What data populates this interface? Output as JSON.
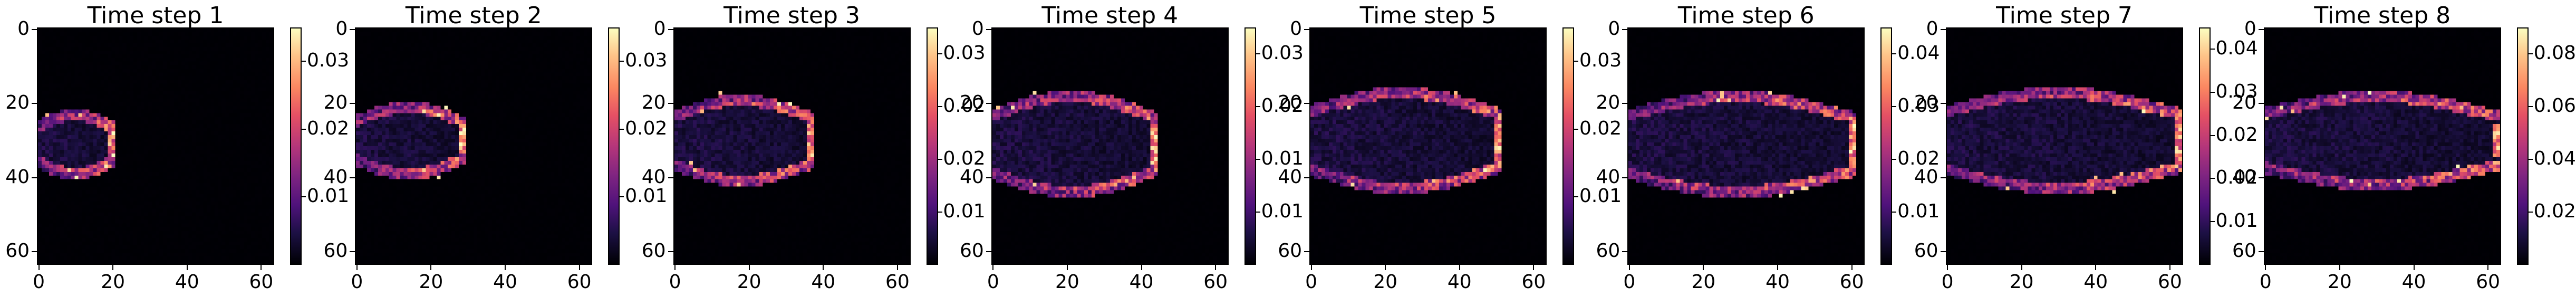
{
  "figure": {
    "background": "#ffffff"
  },
  "chart_data": [
    {
      "type": "heatmap",
      "title": "Time step 1",
      "colormap": "magma",
      "grid": false,
      "xticks": [
        0,
        20,
        40,
        60
      ],
      "yticks": [
        0,
        20,
        40,
        60
      ],
      "xlim": [
        0,
        64
      ],
      "ylim": [
        64,
        0
      ],
      "colorbar": {
        "ticks": [
          "0.01",
          "0.02",
          "0.03"
        ],
        "range": [
          0,
          0.035
        ]
      },
      "front": {
        "tip_x": 20,
        "center_y": 31,
        "half_width": 8,
        "peak": 0.035
      }
    },
    {
      "type": "heatmap",
      "title": "Time step 2",
      "colormap": "magma",
      "grid": false,
      "xticks": [
        0,
        20,
        40,
        60
      ],
      "yticks": [
        0,
        20,
        40,
        60
      ],
      "xlim": [
        0,
        64
      ],
      "ylim": [
        64,
        0
      ],
      "colorbar": {
        "ticks": [
          "0.01",
          "0.02",
          "0.03"
        ],
        "range": [
          0,
          0.038
        ]
      },
      "front": {
        "tip_x": 29,
        "center_y": 30,
        "half_width": 9,
        "peak": 0.038
      }
    },
    {
      "type": "heatmap",
      "title": "Time step 3",
      "colormap": "magma",
      "grid": false,
      "xticks": [
        0,
        20,
        40,
        60
      ],
      "yticks": [
        0,
        20,
        40,
        60
      ],
      "xlim": [
        0,
        64
      ],
      "ylim": [
        64,
        0
      ],
      "colorbar": {
        "ticks": [
          "0.01",
          "0.02",
          "0.02",
          "0.03"
        ],
        "range": [
          0,
          0.036
        ]
      },
      "front": {
        "tip_x": 37,
        "center_y": 30,
        "half_width": 11,
        "peak": 0.036
      }
    },
    {
      "type": "heatmap",
      "title": "Time step 4",
      "colormap": "magma",
      "grid": false,
      "xticks": [
        0,
        20,
        40,
        60
      ],
      "yticks": [
        0,
        20,
        40,
        60
      ],
      "xlim": [
        0,
        64
      ],
      "ylim": [
        64,
        0
      ],
      "colorbar": {
        "ticks": [
          "0.01",
          "0.01",
          "0.02",
          "0.03"
        ],
        "range": [
          0,
          0.033
        ]
      },
      "front": {
        "tip_x": 44,
        "center_y": 31,
        "half_width": 13,
        "peak": 0.033
      }
    },
    {
      "type": "heatmap",
      "title": "Time step 5",
      "colormap": "magma",
      "grid": false,
      "xticks": [
        0,
        20,
        40,
        60
      ],
      "yticks": [
        0,
        20,
        40,
        60
      ],
      "xlim": [
        0,
        64
      ],
      "ylim": [
        64,
        0
      ],
      "colorbar": {
        "ticks": [
          "0.01",
          "0.02",
          "0.03"
        ],
        "range": [
          0,
          0.033
        ]
      },
      "front": {
        "tip_x": 51,
        "center_y": 30,
        "half_width": 13,
        "peak": 0.033
      }
    },
    {
      "type": "heatmap",
      "title": "Time step 6",
      "colormap": "magma",
      "grid": false,
      "xticks": [
        0,
        20,
        40,
        60
      ],
      "yticks": [
        0,
        20,
        40,
        60
      ],
      "xlim": [
        0,
        64
      ],
      "ylim": [
        64,
        0
      ],
      "colorbar": {
        "ticks": [
          "0.01",
          "0.02",
          "0.03",
          "0.04"
        ],
        "range": [
          0,
          0.048
        ]
      },
      "front": {
        "tip_x": 61,
        "center_y": 31,
        "half_width": 13,
        "peak": 0.048
      }
    },
    {
      "type": "heatmap",
      "title": "Time step 7",
      "colormap": "magma",
      "grid": false,
      "xticks": [
        0,
        20,
        40,
        60
      ],
      "yticks": [
        0,
        20,
        40,
        60
      ],
      "xlim": [
        0,
        64
      ],
      "ylim": [
        64,
        0
      ],
      "colorbar": {
        "ticks": [
          "0.01",
          "0.02",
          "0.02",
          "0.03",
          "0.04"
        ],
        "range": [
          0,
          0.045
        ]
      },
      "front": {
        "tip_x": 63,
        "center_y": 30,
        "half_width": 13,
        "peak": 0.045
      }
    },
    {
      "type": "heatmap",
      "title": "Time step 8",
      "colormap": "magma",
      "grid": false,
      "xticks": [
        0,
        20,
        40,
        60
      ],
      "yticks": [
        0,
        20,
        40,
        60
      ],
      "xlim": [
        0,
        64
      ],
      "ylim": [
        64,
        0
      ],
      "colorbar": {
        "ticks": [
          "0.02",
          "0.04",
          "0.06",
          "0.08"
        ],
        "range": [
          0,
          0.088
        ]
      },
      "front": {
        "tip_x": 63,
        "center_y": 30,
        "half_width": 12,
        "peak": 0.088
      }
    }
  ]
}
